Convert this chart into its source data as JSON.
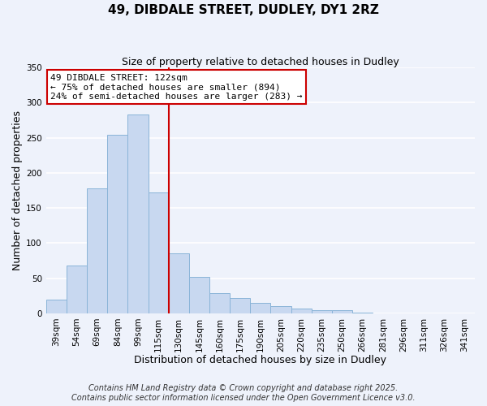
{
  "title": "49, DIBDALE STREET, DUDLEY, DY1 2RZ",
  "subtitle": "Size of property relative to detached houses in Dudley",
  "xlabel": "Distribution of detached houses by size in Dudley",
  "ylabel": "Number of detached properties",
  "bar_color": "#c8d8f0",
  "bar_edgecolor": "#8ab4d8",
  "background_color": "#eef2fb",
  "grid_color": "#ffffff",
  "categories": [
    "39sqm",
    "54sqm",
    "69sqm",
    "84sqm",
    "99sqm",
    "115sqm",
    "130sqm",
    "145sqm",
    "160sqm",
    "175sqm",
    "190sqm",
    "205sqm",
    "220sqm",
    "235sqm",
    "250sqm",
    "266sqm",
    "281sqm",
    "296sqm",
    "311sqm",
    "326sqm",
    "341sqm"
  ],
  "values": [
    20,
    68,
    178,
    254,
    283,
    172,
    85,
    52,
    29,
    22,
    15,
    10,
    7,
    5,
    4,
    1,
    0,
    0,
    0,
    0,
    0
  ],
  "ylim": [
    0,
    350
  ],
  "yticks": [
    0,
    50,
    100,
    150,
    200,
    250,
    300,
    350
  ],
  "property_line_color": "#cc0000",
  "annotation_line1": "49 DIBDALE STREET: 122sqm",
  "annotation_line2": "← 75% of detached houses are smaller (894)",
  "annotation_line3": "24% of semi-detached houses are larger (283) →",
  "annotation_box_color": "#ffffff",
  "annotation_box_edgecolor": "#cc0000",
  "footer_line1": "Contains HM Land Registry data © Crown copyright and database right 2025.",
  "footer_line2": "Contains public sector information licensed under the Open Government Licence v3.0.",
  "footer_fontsize": 7,
  "title_fontsize": 11,
  "subtitle_fontsize": 9,
  "axis_label_fontsize": 9,
  "tick_fontsize": 7.5,
  "annotation_fontsize": 8
}
